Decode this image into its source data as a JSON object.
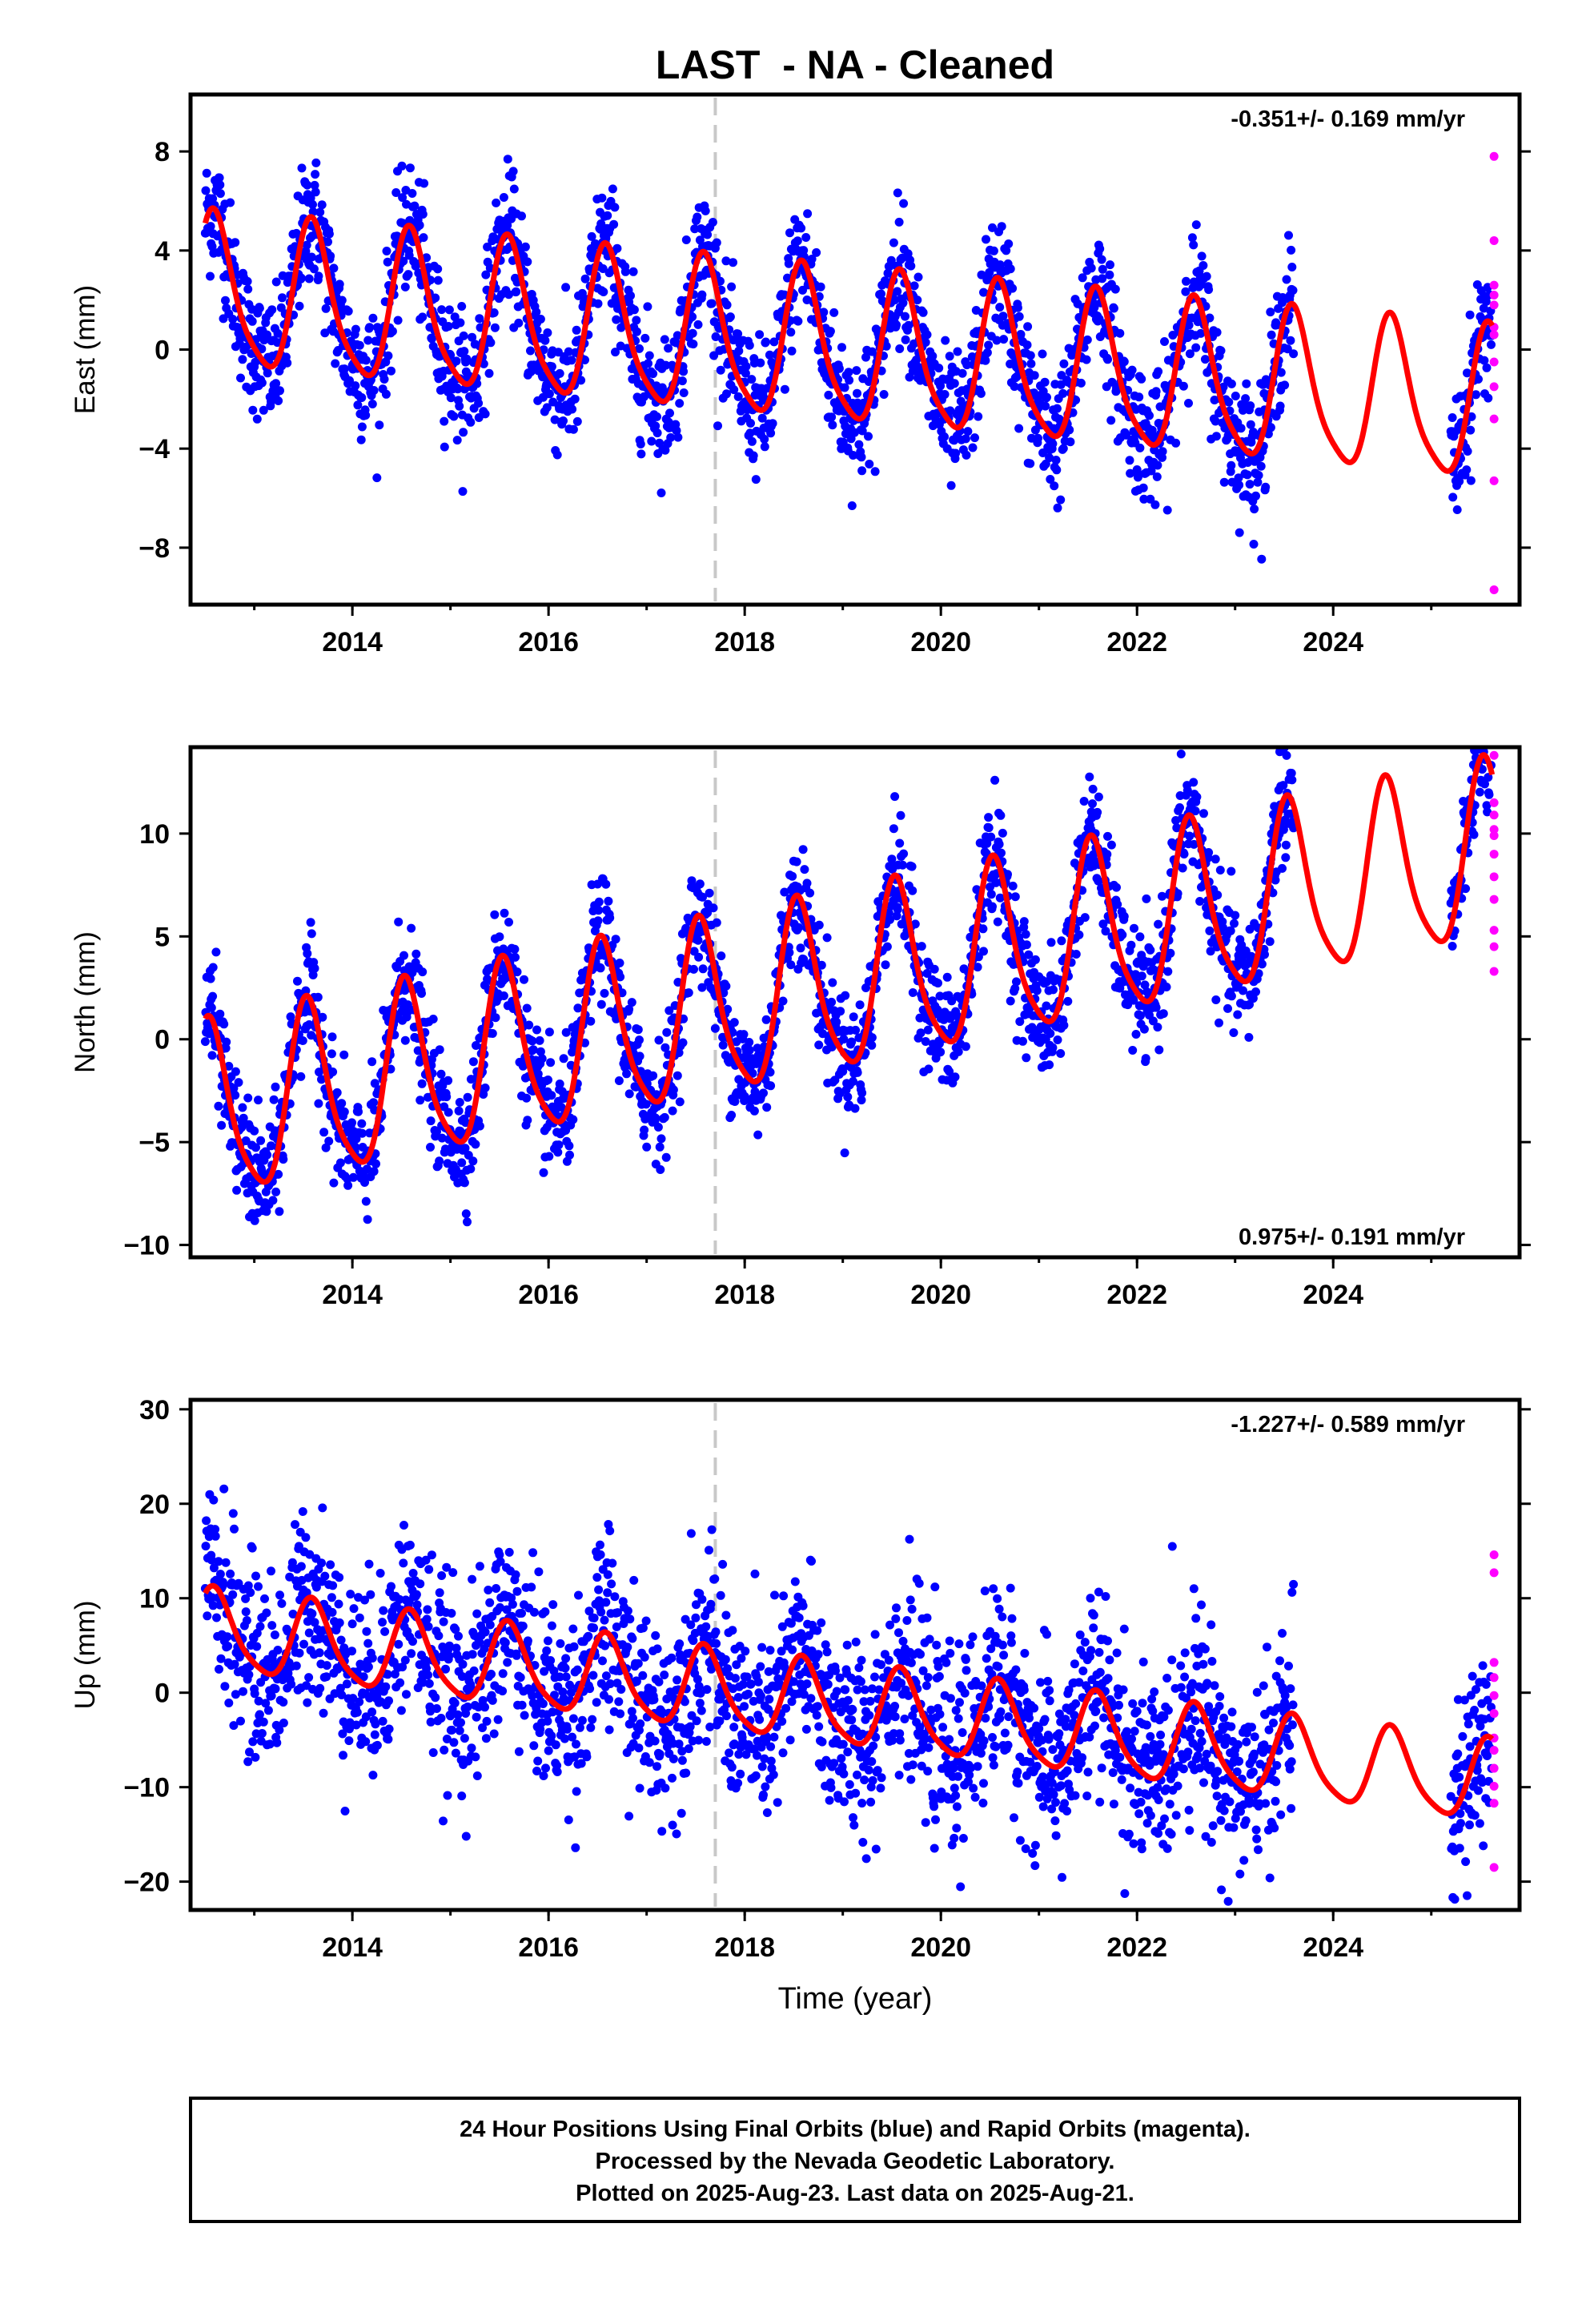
{
  "page_title": "LAST  - NA - Cleaned",
  "colors": {
    "final_orbits": "#0000ff",
    "rapid_orbits": "#ff00ff",
    "model": "#ff0000",
    "event_line": "#c8c8c8",
    "frame": "#000000"
  },
  "footer": {
    "line1": "24 Hour Positions Using Final Orbits (blue) and Rapid Orbits (magenta).",
    "line2": "Processed by the Nevada Geodetic Laboratory.",
    "line3": "Plotted on 2025-Aug-23. Last data on 2025-Aug-21."
  },
  "chart_data": [
    {
      "type": "scatter",
      "component": "East",
      "ylabel": "East (mm)",
      "xlabel": "",
      "xlim": [
        2012.35,
        2025.9
      ],
      "ylim": [
        -10.3,
        10.3
      ],
      "x_ticks": [
        2014,
        2016,
        2018,
        2020,
        2022,
        2024
      ],
      "x_tick_labels": [
        "2014",
        "2016",
        "2018",
        "2020",
        "2022",
        "2024"
      ],
      "y_ticks": [
        -8,
        -4,
        0,
        4,
        8
      ],
      "y_tick_labels": [
        "−8",
        "−4",
        "0",
        "4",
        "8"
      ],
      "rate_label": "-0.351+/- 0.169 mm/yr",
      "rate_position": "top-right",
      "event_line_x": 2017.7,
      "model": {
        "offset": 2.2,
        "trend": -0.351,
        "amplitude": 3.0,
        "amplitude_2": 0.6,
        "phase_year": 2012.6,
        "x_start": 2012.5,
        "x_end": 2025.62
      },
      "final_orbits": {
        "x_start": 2012.5,
        "x_end": 2023.6,
        "x_resume": 2025.2,
        "x_last": 2025.62,
        "scatter": 1.3
      },
      "rapid_orbits": {
        "x": 2025.64,
        "y": [
          7.8,
          4.4,
          2.6,
          2.2,
          1.8,
          0.9,
          0.6,
          -0.5,
          -1.5,
          -2.8,
          -5.3,
          -9.7
        ]
      },
      "grid": false,
      "legend": "none"
    },
    {
      "type": "scatter",
      "component": "North",
      "ylabel": "North (mm)",
      "xlabel": "",
      "xlim": [
        2012.35,
        2025.9
      ],
      "ylim": [
        -10.6,
        14.2
      ],
      "x_ticks": [
        2014,
        2016,
        2018,
        2020,
        2022,
        2024
      ],
      "x_tick_labels": [
        "2014",
        "2016",
        "2018",
        "2020",
        "2022",
        "2024"
      ],
      "y_ticks": [
        -10,
        -5,
        0,
        5,
        10
      ],
      "y_tick_labels": [
        "−10",
        "−5",
        "0",
        "5",
        "10"
      ],
      "rate_label": "0.975+/- 0.191 mm/yr",
      "rate_position": "bottom-right",
      "event_line_x": 2017.7,
      "model": {
        "offset": -3.8,
        "trend": 0.975,
        "amplitude": 4.2,
        "amplitude_2": 0.8,
        "phase_year": 2012.55,
        "x_start": 2012.5,
        "x_end": 2025.62
      },
      "final_orbits": {
        "x_start": 2012.5,
        "x_end": 2023.6,
        "x_resume": 2025.2,
        "x_last": 2025.62,
        "scatter": 1.4
      },
      "rapid_orbits": {
        "x": 2025.64,
        "y": [
          13.8,
          11.5,
          10.9,
          10.2,
          9.9,
          9.0,
          7.9,
          6.8,
          5.3,
          4.5,
          3.3
        ]
      },
      "grid": false,
      "legend": "none"
    },
    {
      "type": "scatter",
      "component": "Up",
      "ylabel": "Up (mm)",
      "xlabel": "Time (year)",
      "xlim": [
        2012.35,
        2025.9
      ],
      "ylim": [
        -23,
        31
      ],
      "x_ticks": [
        2014,
        2016,
        2018,
        2020,
        2022,
        2024
      ],
      "x_tick_labels": [
        "2014",
        "2016",
        "2018",
        "2020",
        "2022",
        "2024"
      ],
      "y_ticks": [
        -20,
        -10,
        0,
        10,
        20,
        30
      ],
      "y_tick_labels": [
        "−20",
        "−10",
        "0",
        "10",
        "20",
        "30"
      ],
      "rate_label": "-1.227+/- 0.589 mm/yr",
      "rate_position": "top-right",
      "event_line_x": 2017.7,
      "model": {
        "offset": 6.5,
        "trend": -1.227,
        "amplitude": 4.2,
        "amplitude_2": 0.8,
        "phase_year": 2012.6,
        "x_start": 2012.5,
        "x_end": 2025.62
      },
      "final_orbits": {
        "x_start": 2012.5,
        "x_end": 2023.6,
        "x_resume": 2025.2,
        "x_last": 2025.62,
        "scatter": 5.0
      },
      "rapid_orbits": {
        "x": 2025.64,
        "y": [
          14.6,
          12.7,
          3.2,
          1.6,
          -0.3,
          -2.2,
          -4.8,
          -6.1,
          -8.0,
          -9.9,
          -11.7,
          -18.5
        ]
      },
      "grid": false,
      "legend": "none"
    }
  ]
}
